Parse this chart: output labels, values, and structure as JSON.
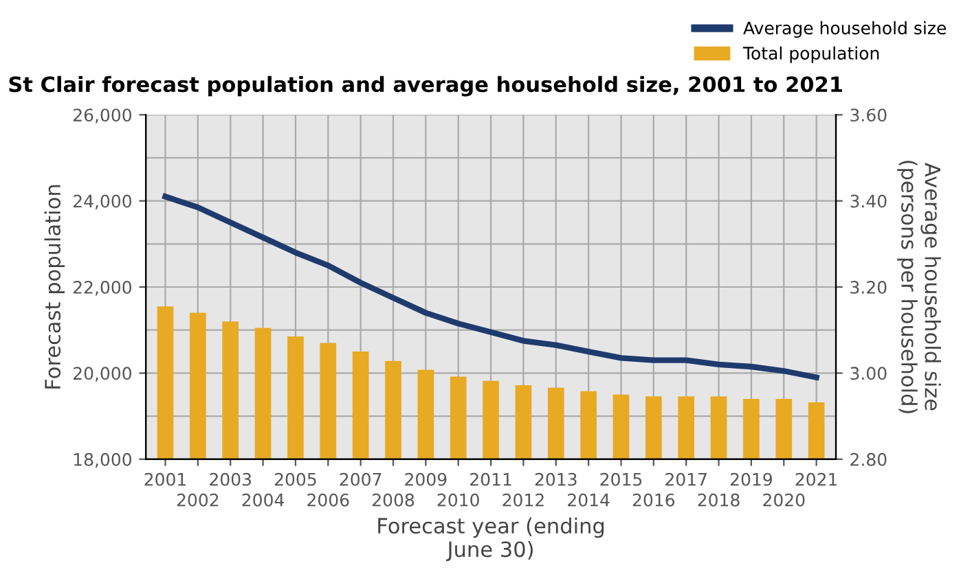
{
  "chart_data": {
    "type": "bar",
    "title": "St Clair forecast population and average household size, 2001 to 2021",
    "xlabel": "Forecast year (ending\nJune 30)",
    "ylabel": "Forecast population",
    "y2label": "Average household size\n(persons per household)",
    "categories": [
      "2001",
      "2002",
      "2003",
      "2004",
      "2005",
      "2006",
      "2007",
      "2008",
      "2009",
      "2010",
      "2011",
      "2012",
      "2013",
      "2014",
      "2015",
      "2016",
      "2017",
      "2018",
      "2019",
      "2020",
      "2021"
    ],
    "series": [
      {
        "name": "Total population",
        "color": "#e8a923",
        "values": [
          21550,
          21400,
          21200,
          21050,
          20850,
          20700,
          20500,
          20280,
          20080,
          19920,
          19820,
          19720,
          19660,
          19580,
          19500,
          19460,
          19460,
          19460,
          19400,
          19400,
          19320
        ]
      },
      {
        "name": "Average household size",
        "type": "line",
        "axis": "y2",
        "color": "#1f3b6e",
        "values": [
          3.41,
          3.385,
          3.35,
          3.315,
          3.28,
          3.25,
          3.21,
          3.175,
          3.14,
          3.115,
          3.095,
          3.075,
          3.065,
          3.05,
          3.035,
          3.03,
          3.03,
          3.02,
          3.015,
          3.005,
          2.99
        ]
      }
    ],
    "ylim": [
      18000,
      26000
    ],
    "yticks": [
      {
        "value": 18000,
        "label": "18,000"
      },
      {
        "value": 20000,
        "label": "20,000"
      },
      {
        "value": 22000,
        "label": "22,000"
      },
      {
        "value": 24000,
        "label": "24,000"
      },
      {
        "value": 26000,
        "label": "26,000"
      }
    ],
    "y2lim": [
      2.8,
      3.6
    ],
    "y2ticks": [
      {
        "value": 2.8,
        "label": "2.80"
      },
      {
        "value": 3.0,
        "label": "3.00"
      },
      {
        "value": 3.2,
        "label": "3.20"
      },
      {
        "value": 3.4,
        "label": "3.40"
      },
      {
        "value": 3.6,
        "label": "3.60"
      }
    ],
    "grid": true,
    "legend": "top right"
  }
}
